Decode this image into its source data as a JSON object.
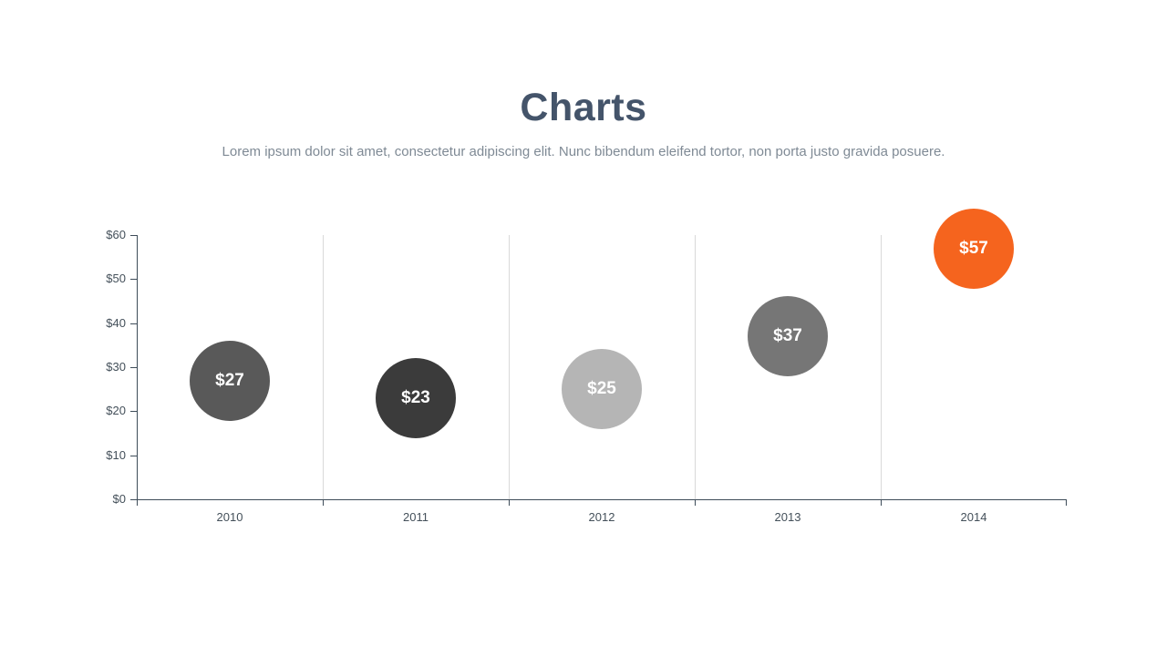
{
  "slide": {
    "title": "Charts",
    "subtitle": "Lorem ipsum dolor sit amet, consectetur adipiscing elit. Nunc bibendum eleifend tortor, non porta justo gravida posuere."
  },
  "theme": {
    "title_color": "#44546a",
    "subtitle_color": "#7f8a95",
    "axis_color": "#3e4c59",
    "gridline_color": "#d9d9d9",
    "tick_label_color": "#44505a",
    "bubble_label_color": "#ffffff",
    "background_color": "#ffffff",
    "accent_color": "#f5641e"
  },
  "chart_data": {
    "type": "scatter",
    "subtype": "bubble",
    "title": "Charts",
    "xlabel": "",
    "ylabel": "",
    "categories": [
      "2010",
      "2011",
      "2012",
      "2013",
      "2014"
    ],
    "values": [
      27,
      23,
      25,
      37,
      57
    ],
    "point_labels": [
      "$27",
      "$23",
      "$25",
      "$37",
      "$57"
    ],
    "point_colors": [
      "#595959",
      "#3b3b3b",
      "#b5b5b5",
      "#767676",
      "#f5641e"
    ],
    "ylim": [
      0,
      60
    ],
    "yticks": [
      {
        "value": 0,
        "label": "$0"
      },
      {
        "value": 10,
        "label": "$10"
      },
      {
        "value": 20,
        "label": "$20"
      },
      {
        "value": 30,
        "label": "$30"
      },
      {
        "value": 40,
        "label": "$40"
      },
      {
        "value": 50,
        "label": "$50"
      },
      {
        "value": 60,
        "label": "$60"
      }
    ],
    "grid": "vertical-only",
    "legend": "none"
  }
}
